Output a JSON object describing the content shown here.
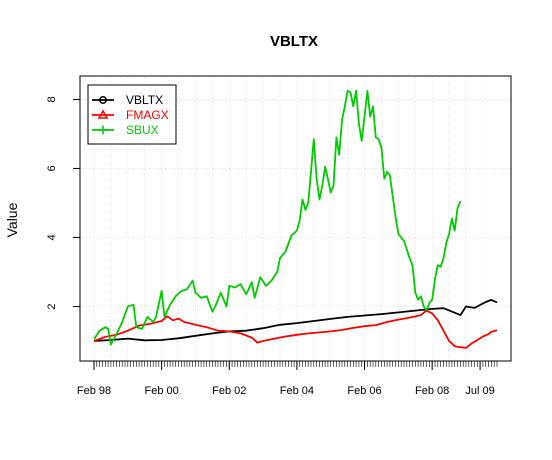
{
  "chart_data": {
    "type": "line",
    "title": "VBLTX",
    "ylabel": "Value",
    "xlabel": "",
    "x_tick_labels": [
      "Feb 98",
      "Feb 00",
      "Feb 02",
      "Feb 04",
      "Feb 06",
      "Feb 08",
      "Jul 09"
    ],
    "x_tick_values": [
      0,
      24,
      48,
      72,
      96,
      120,
      137
    ],
    "x_range": [
      0,
      143
    ],
    "y_tick_labels": [
      "2",
      "4",
      "6",
      "8"
    ],
    "y_tick_values": [
      2,
      4,
      6,
      8
    ],
    "ylim": [
      0.45,
      8.65
    ],
    "grid": true,
    "legend_position": "top-left",
    "series": [
      {
        "name": "VBLTX",
        "color": "#000000",
        "marker": "circle",
        "points": [
          [
            0,
            1.0
          ],
          [
            6,
            1.03
          ],
          [
            12,
            1.07
          ],
          [
            18,
            1.02
          ],
          [
            24,
            1.03
          ],
          [
            30,
            1.08
          ],
          [
            36,
            1.15
          ],
          [
            42,
            1.22
          ],
          [
            48,
            1.28
          ],
          [
            54,
            1.3
          ],
          [
            60,
            1.37
          ],
          [
            66,
            1.47
          ],
          [
            72,
            1.52
          ],
          [
            78,
            1.58
          ],
          [
            84,
            1.64
          ],
          [
            90,
            1.7
          ],
          [
            96,
            1.74
          ],
          [
            102,
            1.78
          ],
          [
            108,
            1.83
          ],
          [
            114,
            1.88
          ],
          [
            120,
            1.93
          ],
          [
            124,
            1.95
          ],
          [
            128,
            1.82
          ],
          [
            130,
            1.75
          ],
          [
            132,
            2.0
          ],
          [
            135,
            1.96
          ],
          [
            139,
            2.13
          ],
          [
            141,
            2.19
          ],
          [
            143,
            2.12
          ]
        ]
      },
      {
        "name": "FMAGX",
        "color": "#ff0000",
        "marker": "triangle",
        "points": [
          [
            0,
            1.0
          ],
          [
            4,
            1.12
          ],
          [
            8,
            1.18
          ],
          [
            12,
            1.3
          ],
          [
            16,
            1.45
          ],
          [
            20,
            1.5
          ],
          [
            24,
            1.58
          ],
          [
            26,
            1.72
          ],
          [
            28,
            1.6
          ],
          [
            30,
            1.65
          ],
          [
            32,
            1.55
          ],
          [
            36,
            1.47
          ],
          [
            40,
            1.4
          ],
          [
            44,
            1.3
          ],
          [
            48,
            1.28
          ],
          [
            52,
            1.22
          ],
          [
            56,
            1.1
          ],
          [
            58,
            0.95
          ],
          [
            60,
            1.0
          ],
          [
            64,
            1.07
          ],
          [
            68,
            1.13
          ],
          [
            72,
            1.18
          ],
          [
            76,
            1.22
          ],
          [
            80,
            1.25
          ],
          [
            84,
            1.28
          ],
          [
            88,
            1.32
          ],
          [
            92,
            1.38
          ],
          [
            96,
            1.43
          ],
          [
            100,
            1.46
          ],
          [
            104,
            1.55
          ],
          [
            108,
            1.62
          ],
          [
            112,
            1.68
          ],
          [
            116,
            1.75
          ],
          [
            118,
            1.88
          ],
          [
            120,
            1.8
          ],
          [
            122,
            1.6
          ],
          [
            124,
            1.3
          ],
          [
            126,
            1.0
          ],
          [
            128,
            0.85
          ],
          [
            130,
            0.82
          ],
          [
            132,
            0.8
          ],
          [
            134,
            0.93
          ],
          [
            136,
            1.03
          ],
          [
            138,
            1.13
          ],
          [
            140,
            1.2
          ],
          [
            141,
            1.27
          ],
          [
            143,
            1.31
          ]
        ]
      },
      {
        "name": "SBUX",
        "color": "#00cc00",
        "marker": "plus",
        "points": [
          [
            0,
            1.05
          ],
          [
            2,
            1.3
          ],
          [
            4,
            1.4
          ],
          [
            5,
            1.35
          ],
          [
            6,
            0.9
          ],
          [
            8,
            1.2
          ],
          [
            10,
            1.55
          ],
          [
            12,
            2.0
          ],
          [
            14,
            2.05
          ],
          [
            15,
            1.4
          ],
          [
            17,
            1.35
          ],
          [
            19,
            1.7
          ],
          [
            21,
            1.55
          ],
          [
            22,
            1.7
          ],
          [
            24,
            2.45
          ],
          [
            25,
            1.7
          ],
          [
            27,
            2.05
          ],
          [
            29,
            2.3
          ],
          [
            31,
            2.45
          ],
          [
            33,
            2.5
          ],
          [
            35,
            2.75
          ],
          [
            36,
            2.4
          ],
          [
            38,
            2.25
          ],
          [
            40,
            2.3
          ],
          [
            42,
            1.85
          ],
          [
            43,
            2.0
          ],
          [
            45,
            2.4
          ],
          [
            47,
            2.0
          ],
          [
            48,
            2.6
          ],
          [
            50,
            2.55
          ],
          [
            52,
            2.65
          ],
          [
            54,
            2.35
          ],
          [
            56,
            2.7
          ],
          [
            57,
            2.25
          ],
          [
            59,
            2.85
          ],
          [
            61,
            2.6
          ],
          [
            63,
            2.75
          ],
          [
            65,
            3.0
          ],
          [
            66,
            3.4
          ],
          [
            68,
            3.6
          ],
          [
            70,
            4.05
          ],
          [
            72,
            4.2
          ],
          [
            73,
            4.5
          ],
          [
            74,
            5.1
          ],
          [
            75,
            4.8
          ],
          [
            76,
            5.0
          ],
          [
            77,
            5.9
          ],
          [
            78,
            6.85
          ],
          [
            79,
            5.7
          ],
          [
            80,
            5.1
          ],
          [
            81,
            5.5
          ],
          [
            82,
            6.05
          ],
          [
            83,
            5.7
          ],
          [
            84,
            5.3
          ],
          [
            85,
            5.5
          ],
          [
            86,
            6.9
          ],
          [
            87,
            6.4
          ],
          [
            88,
            7.4
          ],
          [
            89,
            7.8
          ],
          [
            90,
            8.25
          ],
          [
            91,
            8.2
          ],
          [
            92,
            7.8
          ],
          [
            93,
            8.25
          ],
          [
            94,
            7.3
          ],
          [
            95,
            6.8
          ],
          [
            96,
            7.5
          ],
          [
            97,
            8.25
          ],
          [
            98,
            7.5
          ],
          [
            99,
            7.8
          ],
          [
            100,
            6.9
          ],
          [
            101,
            6.85
          ],
          [
            102,
            6.6
          ],
          [
            103,
            5.7
          ],
          [
            104,
            5.9
          ],
          [
            105,
            5.8
          ],
          [
            106,
            5.2
          ],
          [
            107,
            4.6
          ],
          [
            108,
            4.1
          ],
          [
            110,
            3.9
          ],
          [
            112,
            3.4
          ],
          [
            113,
            3.2
          ],
          [
            114,
            2.4
          ],
          [
            115,
            2.2
          ],
          [
            116,
            2.3
          ],
          [
            117,
            2.0
          ],
          [
            118,
            1.9
          ],
          [
            119,
            2.1
          ],
          [
            120,
            2.2
          ],
          [
            121,
            2.8
          ],
          [
            122,
            3.2
          ],
          [
            123,
            3.15
          ],
          [
            124,
            3.4
          ],
          [
            125,
            3.85
          ],
          [
            126,
            4.1
          ],
          [
            127,
            4.55
          ],
          [
            128,
            4.2
          ],
          [
            129,
            4.85
          ],
          [
            130,
            5.05
          ]
        ]
      }
    ]
  }
}
